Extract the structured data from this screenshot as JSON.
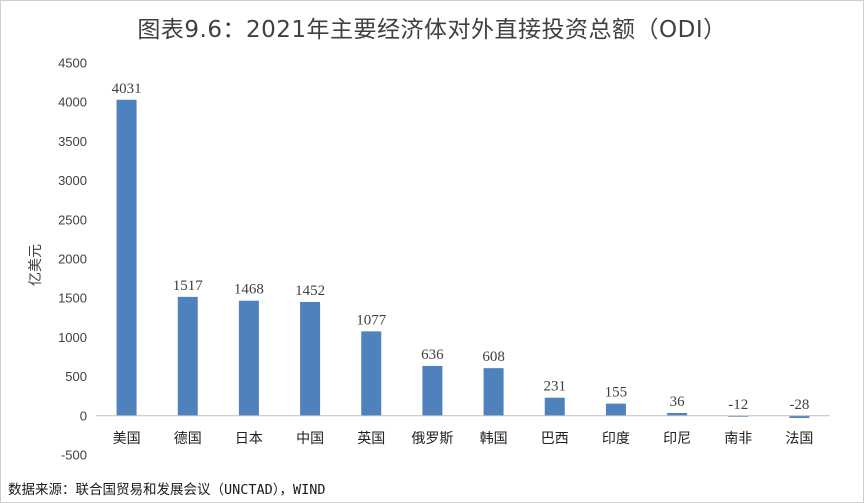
{
  "title": "图表9.6：2021年主要经济体对外直接投资总额（ODI）",
  "source": "数据来源：联合国贸易和发展会议（UNCTAD），WIND",
  "chart_data": {
    "type": "bar",
    "title": "图表9.6：2021年主要经济体对外直接投资总额（ODI）",
    "xlabel": "",
    "ylabel": "亿美元",
    "categories": [
      "美国",
      "德国",
      "日本",
      "中国",
      "英国",
      "俄罗斯",
      "韩国",
      "巴西",
      "印度",
      "印尼",
      "南非",
      "法国"
    ],
    "values": [
      4031,
      1517,
      1468,
      1452,
      1077,
      636,
      608,
      231,
      155,
      36,
      -12,
      -28
    ],
    "data_labels": [
      "4031",
      "1517",
      "1468",
      "1452",
      "1077",
      "636",
      "608",
      "231",
      "155",
      "36",
      "-12",
      "-28"
    ],
    "ylim": [
      -500,
      4500
    ],
    "yticks": [
      -500,
      0,
      500,
      1000,
      1500,
      2000,
      2500,
      3000,
      3500,
      4000,
      4500
    ],
    "ytick_labels": [
      "-500",
      "0",
      "500",
      "1000",
      "1500",
      "2000",
      "2500",
      "3000",
      "3500",
      "4000",
      "4500"
    ],
    "grid": false,
    "legend": "none",
    "bar_color": "#4f81bd",
    "axis_color": "#bfbfbf"
  }
}
